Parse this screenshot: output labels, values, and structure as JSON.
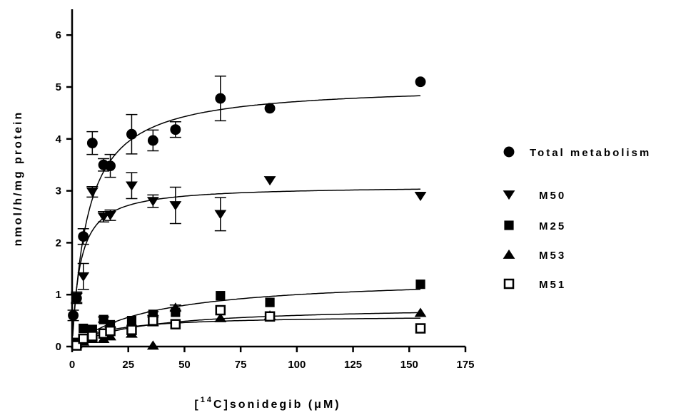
{
  "chart_data": {
    "type": "scatter",
    "xlabel": {
      "prefix": "[",
      "sup": "14",
      "main": "C]sonidegib (μM)"
    },
    "ylabel": "nmol/h/mg protein",
    "xlim": [
      0,
      175
    ],
    "ylim": [
      0,
      6.5
    ],
    "xticks": [
      "0",
      "25",
      "50",
      "75",
      "100",
      "125",
      "150",
      "175"
    ],
    "yticks": [
      "0",
      "1",
      "2",
      "3",
      "4",
      "5",
      "6"
    ],
    "grid": false,
    "legend_position": "right",
    "series": [
      {
        "name": "Total metabolism",
        "marker": "circle-filled",
        "points": [
          {
            "x": 0.5,
            "y": 0.6,
            "err": 0.1
          },
          {
            "x": 2,
            "y": 0.93,
            "err": 0.1
          },
          {
            "x": 5,
            "y": 2.12,
            "err": 0.15
          },
          {
            "x": 9,
            "y": 3.92,
            "err": 0.22
          },
          {
            "x": 14,
            "y": 3.5,
            "err": 0.12
          },
          {
            "x": 17,
            "y": 3.48,
            "err": 0.22
          },
          {
            "x": 26.5,
            "y": 4.09,
            "err": 0.38
          },
          {
            "x": 36,
            "y": 3.97,
            "err": 0.2
          },
          {
            "x": 46,
            "y": 4.18,
            "err": 0.15
          },
          {
            "x": 66,
            "y": 4.78,
            "err": 0.43
          },
          {
            "x": 88,
            "y": 4.59,
            "err": 0
          },
          {
            "x": 155,
            "y": 5.1,
            "err": 0
          }
        ],
        "fit": {
          "vmax": 5.05,
          "km": 7.0
        }
      },
      {
        "name": "M50",
        "marker": "triangle-down-filled",
        "points": [
          {
            "x": 2,
            "y": 0.95,
            "err": 0.1
          },
          {
            "x": 5,
            "y": 1.35,
            "err": 0.25
          },
          {
            "x": 9,
            "y": 2.98,
            "err": 0.1
          },
          {
            "x": 14,
            "y": 2.5,
            "err": 0.1
          },
          {
            "x": 17,
            "y": 2.53,
            "err": 0.1
          },
          {
            "x": 26.5,
            "y": 3.1,
            "err": 0.25
          },
          {
            "x": 36,
            "y": 2.8,
            "err": 0.12
          },
          {
            "x": 46,
            "y": 2.72,
            "err": 0.35
          },
          {
            "x": 66,
            "y": 2.55,
            "err": 0.32
          },
          {
            "x": 88,
            "y": 3.2,
            "err": 0
          },
          {
            "x": 155,
            "y": 2.9,
            "err": 0
          }
        ],
        "fit": {
          "vmax": 3.1,
          "km": 3.5
        }
      },
      {
        "name": "M25",
        "marker": "square-filled",
        "points": [
          {
            "x": 2,
            "y": 0.08,
            "err": 0
          },
          {
            "x": 5,
            "y": 0.35,
            "err": 0
          },
          {
            "x": 9,
            "y": 0.33,
            "err": 0
          },
          {
            "x": 14,
            "y": 0.52,
            "err": 0.05
          },
          {
            "x": 17,
            "y": 0.42,
            "err": 0.05
          },
          {
            "x": 26.5,
            "y": 0.5,
            "err": 0
          },
          {
            "x": 36,
            "y": 0.62,
            "err": 0.05
          },
          {
            "x": 46,
            "y": 0.66,
            "err": 0
          },
          {
            "x": 66,
            "y": 0.98,
            "err": 0
          },
          {
            "x": 88,
            "y": 0.85,
            "err": 0
          },
          {
            "x": 155,
            "y": 1.2,
            "err": 0
          }
        ],
        "fit": {
          "vmax": 1.35,
          "km": 35
        }
      },
      {
        "name": "M53",
        "marker": "triangle-up-filled",
        "points": [
          {
            "x": 2,
            "y": 0.05,
            "err": 0
          },
          {
            "x": 5,
            "y": 0.1,
            "err": 0
          },
          {
            "x": 9,
            "y": 0.15,
            "err": 0
          },
          {
            "x": 14,
            "y": 0.15,
            "err": 0
          },
          {
            "x": 17,
            "y": 0.2,
            "err": 0
          },
          {
            "x": 26.5,
            "y": 0.25,
            "err": 0
          },
          {
            "x": 36,
            "y": 0.02,
            "err": 0
          },
          {
            "x": 46,
            "y": 0.75,
            "err": 0.05
          },
          {
            "x": 66,
            "y": 0.55,
            "err": 0
          },
          {
            "x": 88,
            "y": 0.6,
            "err": 0
          },
          {
            "x": 155,
            "y": 0.65,
            "err": 0
          }
        ],
        "fit": {
          "vmax": 0.78,
          "km": 30
        }
      },
      {
        "name": "M51",
        "marker": "square-open",
        "points": [
          {
            "x": 2,
            "y": 0.02,
            "err": 0
          },
          {
            "x": 5,
            "y": 0.15,
            "err": 0
          },
          {
            "x": 9,
            "y": 0.2,
            "err": 0
          },
          {
            "x": 14,
            "y": 0.25,
            "err": 0
          },
          {
            "x": 17,
            "y": 0.3,
            "err": 0
          },
          {
            "x": 26.5,
            "y": 0.32,
            "err": 0
          },
          {
            "x": 36,
            "y": 0.5,
            "err": 0.1
          },
          {
            "x": 46,
            "y": 0.43,
            "err": 0
          },
          {
            "x": 66,
            "y": 0.7,
            "err": 0
          },
          {
            "x": 88,
            "y": 0.58,
            "err": 0
          },
          {
            "x": 155,
            "y": 0.35,
            "err": 0
          }
        ],
        "fit": {
          "vmax": 0.6,
          "km": 15
        }
      }
    ]
  }
}
